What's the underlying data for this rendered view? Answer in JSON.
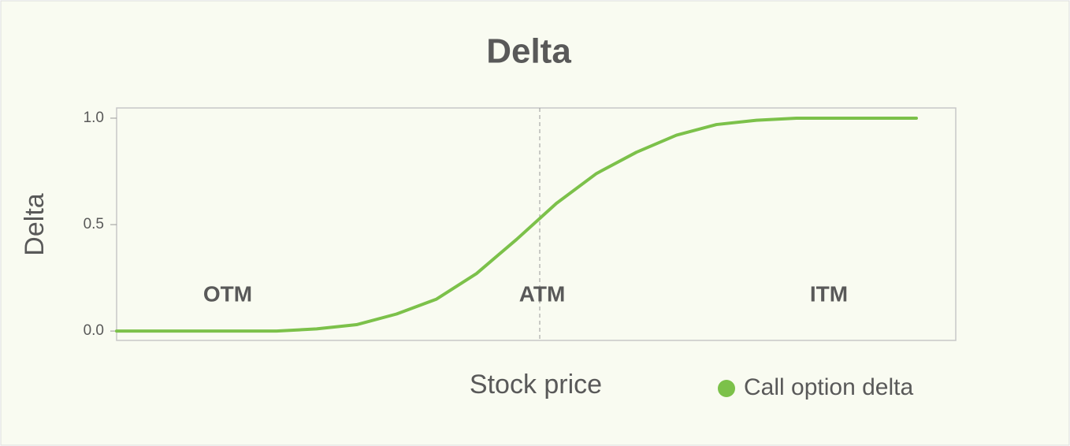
{
  "chart_data": {
    "type": "line",
    "title": "Delta",
    "xlabel": "Stock price",
    "ylabel": "Delta",
    "categories": [
      null,
      null,
      null,
      null,
      null,
      null,
      null,
      null,
      null,
      null,
      null,
      null,
      null,
      null,
      null,
      null,
      null,
      null,
      null,
      null,
      null
    ],
    "series": [
      {
        "name": "Call option delta",
        "color": "#7cc14a",
        "values": [
          0,
          0,
          0,
          0,
          0,
          0.01,
          0.03,
          0.08,
          0.15,
          0.27,
          0.43,
          0.6,
          0.74,
          0.84,
          0.92,
          0.97,
          0.99,
          1,
          1,
          1,
          1
        ]
      }
    ],
    "ylim": [
      -0.044,
      1.048
    ],
    "yticks": [
      {
        "value": 0,
        "label": "0.0"
      },
      {
        "value": 0.5,
        "label": "0.5"
      },
      {
        "value": 1,
        "label": "1.0"
      }
    ],
    "annotations": [
      "OTM",
      "ATM",
      "ITM"
    ],
    "grid": false,
    "legend": "bottom right"
  }
}
